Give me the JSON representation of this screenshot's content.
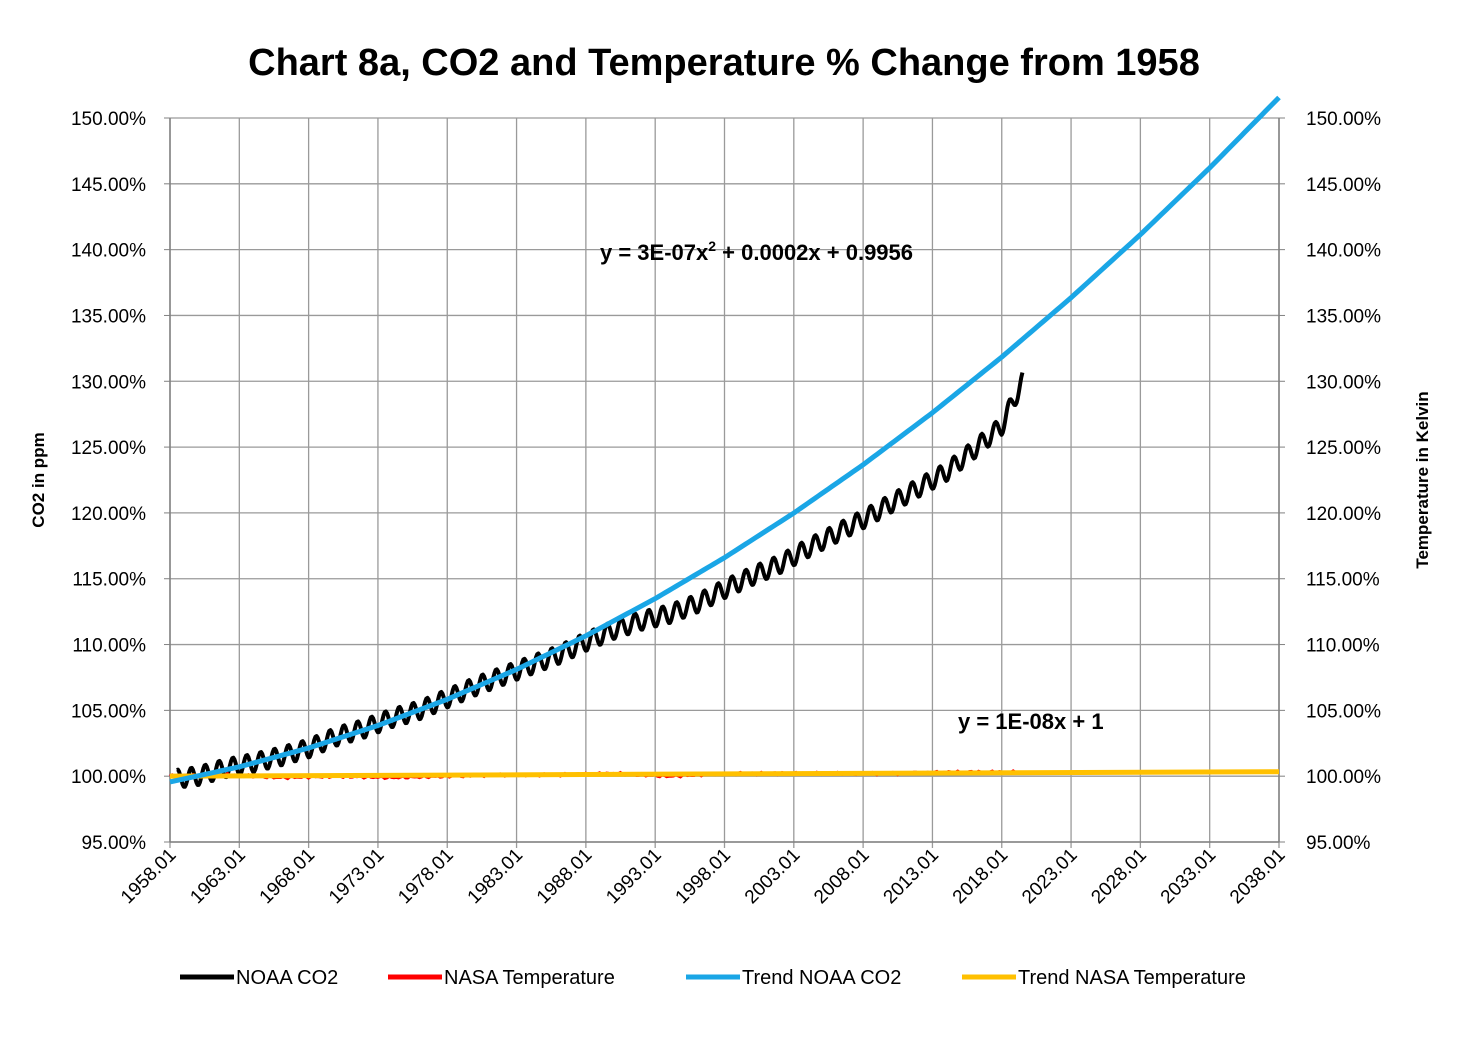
{
  "chart_data": {
    "type": "line",
    "title": "Chart 8a, CO2 and Temperature % Change from 1958",
    "ylabel": "CO2 in ppm",
    "y2label": "Temperature in Kelvin",
    "xlabel": "",
    "ylim": [
      0.95,
      1.5
    ],
    "y2lim": [
      0.95,
      1.5
    ],
    "xlim": [
      1958.01,
      2038.01
    ],
    "y_ticks": [
      "95.00%",
      "100.00%",
      "105.00%",
      "110.00%",
      "115.00%",
      "120.00%",
      "125.00%",
      "130.00%",
      "135.00%",
      "140.00%",
      "145.00%",
      "150.00%"
    ],
    "y_tick_values": [
      0.95,
      1.0,
      1.05,
      1.1,
      1.15,
      1.2,
      1.25,
      1.3,
      1.35,
      1.4,
      1.45,
      1.5
    ],
    "x_ticks": [
      "1958.01",
      "1963.01",
      "1968.01",
      "1973.01",
      "1978.01",
      "1983.01",
      "1988.01",
      "1993.01",
      "1998.01",
      "2003.01",
      "2008.01",
      "2013.01",
      "2018.01",
      "2023.01",
      "2028.01",
      "2033.01",
      "2038.01"
    ],
    "x_tick_values": [
      1958.01,
      1963.01,
      1968.01,
      1973.01,
      1978.01,
      1983.01,
      1988.01,
      1993.01,
      1998.01,
      2003.01,
      2008.01,
      2013.01,
      2018.01,
      2023.01,
      2028.01,
      2033.01,
      2038.01
    ],
    "grid": true,
    "legend_position": "bottom",
    "series": [
      {
        "name": "NOAA CO2",
        "color": "#000000",
        "x": [
          1958.5,
          1960,
          1962,
          1964,
          1966,
          1968,
          1970,
          1972,
          1974,
          1976,
          1978,
          1980,
          1982,
          1984,
          1986,
          1988,
          1990,
          1992,
          1994,
          1996,
          1998,
          2000,
          2002,
          2004,
          2006,
          2008,
          2010,
          2012,
          2014,
          2016,
          2018,
          2019.5
        ],
        "values": [
          0.998,
          1.0,
          1.006,
          1.01,
          1.015,
          1.021,
          1.03,
          1.036,
          1.044,
          1.05,
          1.059,
          1.068,
          1.076,
          1.084,
          1.092,
          1.102,
          1.111,
          1.118,
          1.123,
          1.131,
          1.142,
          1.152,
          1.161,
          1.173,
          1.184,
          1.195,
          1.207,
          1.219,
          1.231,
          1.248,
          1.266,
          1.3
        ],
        "seasonal_amplitude": 0.007
      },
      {
        "name": "NASA Temperature",
        "color": "#ff0000",
        "x": [
          1958,
          1962,
          1966,
          1970,
          1974,
          1978,
          1982,
          1986,
          1990,
          1994,
          1998,
          2002,
          2006,
          2010,
          2014,
          2018,
          2019.5
        ],
        "values": [
          1.0,
          1.001,
          0.999,
          1.0,
          0.999,
          1.0,
          1.001,
          1.001,
          1.002,
          1.0,
          1.002,
          1.002,
          1.002,
          1.002,
          1.003,
          1.003,
          1.003
        ],
        "noise": 0.001
      },
      {
        "name": "Trend NOAA CO2",
        "color": "#1aa6e6",
        "x": [
          1958.01,
          1963.01,
          1968.01,
          1973.01,
          1978.01,
          1983.01,
          1988.01,
          1993.01,
          1998.01,
          2003.01,
          2008.01,
          2013.01,
          2018.01,
          2023.01,
          2028.01,
          2033.01,
          2038.01
        ],
        "values": [
          0.9956,
          1.0071,
          1.0214,
          1.0385,
          1.0584,
          1.0811,
          1.1066,
          1.1349,
          1.166,
          1.1999,
          1.2366,
          1.2761,
          1.3184,
          1.3635,
          1.4114,
          1.4621,
          1.5156
        ],
        "equation": "y = 3E-07x² + 0.0002x  + 0.9956",
        "equation_parts": [
          "y = 3E-07x",
          "2",
          " + 0.0002x  + 0.9956"
        ]
      },
      {
        "name": "Trend NASA Temperature",
        "color": "#ffc000",
        "x": [
          1958.01,
          2038.01
        ],
        "values": [
          1.0,
          1.0034
        ],
        "equation": "y = 1E-08x + 1"
      }
    ]
  }
}
